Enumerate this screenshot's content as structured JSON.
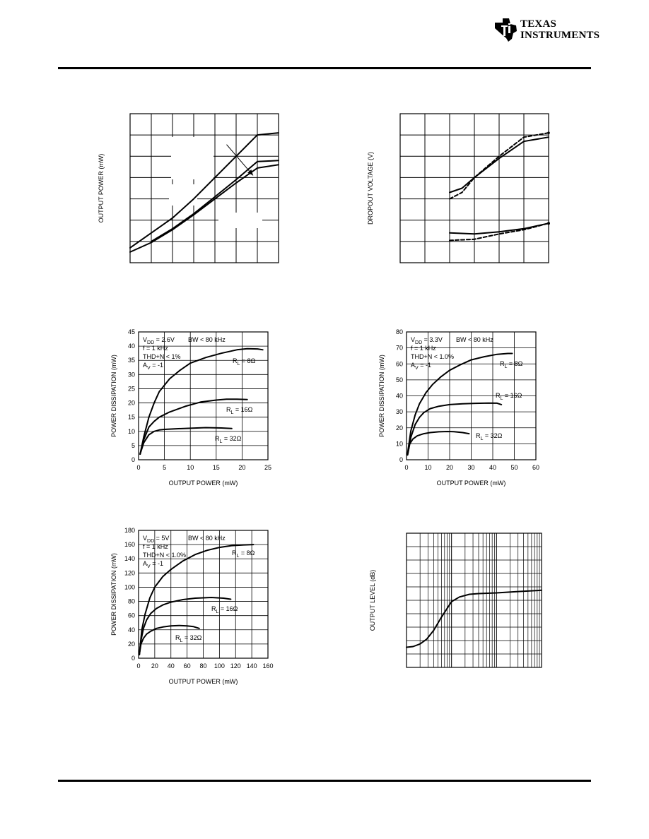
{
  "header": {
    "brand_line1": "TEXAS",
    "brand_line2": "INSTRUMENTS"
  },
  "chart_data": [
    {
      "id": "chart1",
      "type": "line",
      "title": "",
      "xlabel": "",
      "ylabel": "OUTPUT POWER (mW)",
      "xlim": [
        0,
        7
      ],
      "ylim": [
        0,
        7
      ],
      "grid": {
        "cols": 7,
        "rows": 7
      },
      "series": [
        {
          "x": [
            0,
            1,
            2,
            3,
            4,
            5,
            6,
            7
          ],
          "y": [
            0.7,
            1.4,
            2.1,
            3.0,
            4.0,
            5.0,
            6.0,
            6.1
          ]
        },
        {
          "x": [
            1.0,
            2,
            3,
            4,
            5,
            6,
            7
          ],
          "y": [
            1.0,
            1.6,
            2.3,
            3.1,
            3.9,
            4.75,
            4.8
          ]
        },
        {
          "x": [
            0,
            1,
            2,
            3,
            4,
            5,
            6,
            7
          ],
          "y": [
            0.5,
            0.95,
            1.55,
            2.25,
            3.0,
            3.75,
            4.45,
            4.6
          ]
        }
      ],
      "arrow": {
        "from": [
          4.55,
          5.55
        ],
        "to": [
          5.8,
          4.1
        ]
      }
    },
    {
      "id": "chart2",
      "type": "line",
      "title": "",
      "xlabel": "",
      "ylabel": "DROPOUT VOLTAGE (V)",
      "xlim": [
        0,
        6
      ],
      "ylim": [
        0,
        7
      ],
      "grid": {
        "cols": 6,
        "rows": 7
      },
      "series": [
        {
          "x": [
            2,
            2.5,
            3,
            4,
            5,
            6
          ],
          "y": [
            3.3,
            3.5,
            4.0,
            4.9,
            5.7,
            5.9
          ],
          "dash": false
        },
        {
          "x": [
            2,
            2.5,
            3,
            4,
            5,
            6
          ],
          "y": [
            3.0,
            3.3,
            4.0,
            5.0,
            5.9,
            6.1
          ],
          "dash": true
        },
        {
          "x": [
            2,
            3,
            4,
            5,
            6
          ],
          "y": [
            1.4,
            1.35,
            1.45,
            1.6,
            1.85
          ],
          "dash": false
        },
        {
          "x": [
            2,
            3,
            4,
            5,
            6
          ],
          "y": [
            1.05,
            1.1,
            1.35,
            1.55,
            1.85
          ],
          "dash": true
        }
      ]
    },
    {
      "id": "chart3",
      "type": "line",
      "title": "",
      "xlabel": "OUTPUT POWER (mW)",
      "ylabel": "POWER DISSIPATION (mW)",
      "xlim": [
        0,
        25
      ],
      "ylim": [
        0,
        45
      ],
      "xticks": [
        "0",
        "5",
        "10",
        "15",
        "20",
        "25"
      ],
      "yticks": [
        "0",
        "5",
        "10",
        "15",
        "20",
        "25",
        "30",
        "35",
        "40",
        "45"
      ],
      "annotations": [
        "V",
        "DD",
        " = 2.6V",
        "BW < 80 kHz",
        "f = 1 kHz",
        "THD+N < 1%",
        "A",
        "V",
        " = -1"
      ],
      "series": [
        {
          "name": "RL = 8Ω",
          "name_main": "R",
          "name_sub": "L",
          "name_tail": " = 8Ω",
          "x": [
            0.3,
            1,
            2,
            3,
            4,
            6,
            8,
            10,
            13,
            16,
            19,
            21,
            23,
            24
          ],
          "y": [
            2,
            8,
            15,
            20,
            24,
            28.5,
            31.5,
            34,
            36,
            37.5,
            38.7,
            39.1,
            39,
            38.7
          ]
        },
        {
          "name": "RL = 16Ω",
          "name_main": "R",
          "name_sub": "L",
          "name_tail": " = 16Ω",
          "x": [
            0.3,
            1,
            2,
            3,
            4,
            6,
            9,
            12,
            15,
            17,
            19,
            21
          ],
          "y": [
            2,
            7,
            11.5,
            13.5,
            15,
            16.8,
            18.8,
            20.3,
            21,
            21.3,
            21.3,
            21.2
          ]
        },
        {
          "name": "RL = 32Ω",
          "name_main": "R",
          "name_sub": "L",
          "name_tail": " = 32Ω",
          "x": [
            0.3,
            1,
            2,
            3,
            4,
            5,
            7,
            10,
            13,
            16,
            18
          ],
          "y": [
            2,
            6,
            8.8,
            10,
            10.5,
            10.7,
            10.9,
            11.1,
            11.3,
            11.2,
            11
          ]
        }
      ]
    },
    {
      "id": "chart4",
      "type": "line",
      "title": "",
      "xlabel": "OUTPUT POWER (mW)",
      "ylabel": "POWER DISSIPATION (mW)",
      "xlim": [
        0,
        60
      ],
      "ylim": [
        0,
        80
      ],
      "xticks": [
        "0",
        "10",
        "20",
        "30",
        "40",
        "50",
        "60"
      ],
      "yticks": [
        "0",
        "10",
        "20",
        "30",
        "40",
        "50",
        "60",
        "70",
        "80"
      ],
      "annotations": [
        "V",
        "DD",
        " = 3.3V",
        "BW < 80 kHz",
        "f = 1 kHz",
        "THD+N < 1.0%",
        "A",
        "V",
        " = -1"
      ],
      "series": [
        {
          "name": "RL = 8Ω",
          "name_main": "R",
          "name_sub": "L",
          "name_tail": " = 8Ω",
          "x": [
            0.5,
            2,
            4,
            6,
            9,
            12,
            16,
            20,
            25,
            30,
            36,
            42,
            47,
            49
          ],
          "y": [
            4,
            18,
            28,
            35,
            42,
            47,
            52,
            56,
            59.5,
            62.5,
            64.5,
            66,
            66.5,
            66.5
          ]
        },
        {
          "name": "RL = 16Ω",
          "name_main": "R",
          "name_sub": "L",
          "name_tail": " = 16Ω",
          "x": [
            0.5,
            2,
            4,
            6,
            8,
            11,
            15,
            20,
            26,
            32,
            38,
            42,
            44
          ],
          "y": [
            3,
            14,
            22,
            26.5,
            29.5,
            32,
            33.5,
            34.5,
            35,
            35.3,
            35.5,
            35.4,
            34.5
          ]
        },
        {
          "name": "RL = 32Ω",
          "name_main": "R",
          "name_sub": "L",
          "name_tail": " = 32Ω",
          "x": [
            0.5,
            1.5,
            3,
            5,
            8,
            11,
            15,
            19,
            22,
            26,
            29
          ],
          "y": [
            3,
            10,
            13,
            15,
            16.3,
            17,
            17.5,
            17.7,
            17.6,
            17,
            16.3
          ]
        }
      ]
    },
    {
      "id": "chart5",
      "type": "line",
      "title": "",
      "xlabel": "OUTPUT POWER (mW)",
      "ylabel": "POWER DISSIPATION (mW)",
      "xlim": [
        0,
        160
      ],
      "ylim": [
        0,
        180
      ],
      "xticks": [
        "0",
        "20",
        "40",
        "60",
        "80",
        "100",
        "120",
        "140",
        "160"
      ],
      "yticks": [
        "0",
        "20",
        "40",
        "60",
        "80",
        "100",
        "120",
        "140",
        "160",
        "180"
      ],
      "annotations": [
        "V",
        "DD",
        " = 5V",
        "BW < 80 kHz",
        "f = 1 kHz",
        "THD+N < 1.0%",
        "A",
        "V",
        " = -1"
      ],
      "series": [
        {
          "name": "RL = 8Ω",
          "name_main": "R",
          "name_sub": "L",
          "name_tail": " = 8Ω",
          "x": [
            1,
            4,
            8,
            14,
            20,
            30,
            40,
            55,
            70,
            85,
            100,
            115,
            130,
            142
          ],
          "y": [
            5,
            40,
            62,
            85,
            100,
            115,
            125,
            137,
            146,
            152,
            156,
            158.5,
            159.5,
            160
          ]
        },
        {
          "name": "RL = 16Ω",
          "name_main": "R",
          "name_sub": "L",
          "name_tail": " = 16Ω",
          "x": [
            1,
            3,
            6,
            10,
            15,
            22,
            30,
            40,
            55,
            70,
            90,
            105,
            114
          ],
          "y": [
            5,
            25,
            42,
            54,
            63,
            70,
            75,
            79,
            82.5,
            84.5,
            85.5,
            84.5,
            83
          ]
        },
        {
          "name": "RL = 32Ω",
          "name_main": "R",
          "name_sub": "L",
          "name_tail": " = 32Ω",
          "x": [
            1,
            3,
            6,
            10,
            15,
            22,
            30,
            40,
            50,
            60,
            68,
            75
          ],
          "y": [
            5,
            20,
            28,
            34,
            38,
            42,
            44,
            45.5,
            46,
            45.5,
            44.5,
            42
          ]
        }
      ]
    },
    {
      "id": "chart6",
      "type": "line",
      "title": "",
      "xlabel": "",
      "ylabel": "OUTPUT LEVEL (dB)",
      "xscale": "log",
      "decades": 3,
      "ylim": [
        0,
        10
      ],
      "grid": {
        "rows": 10
      },
      "series": [
        {
          "x": [
            10,
            14,
            20,
            28,
            40,
            60,
            100,
            150,
            250,
            400,
            1000,
            3000,
            10000
          ],
          "y": [
            1.5,
            1.55,
            1.75,
            2.1,
            2.75,
            3.75,
            4.9,
            5.25,
            5.45,
            5.5,
            5.55,
            5.65,
            5.75
          ]
        }
      ]
    }
  ]
}
